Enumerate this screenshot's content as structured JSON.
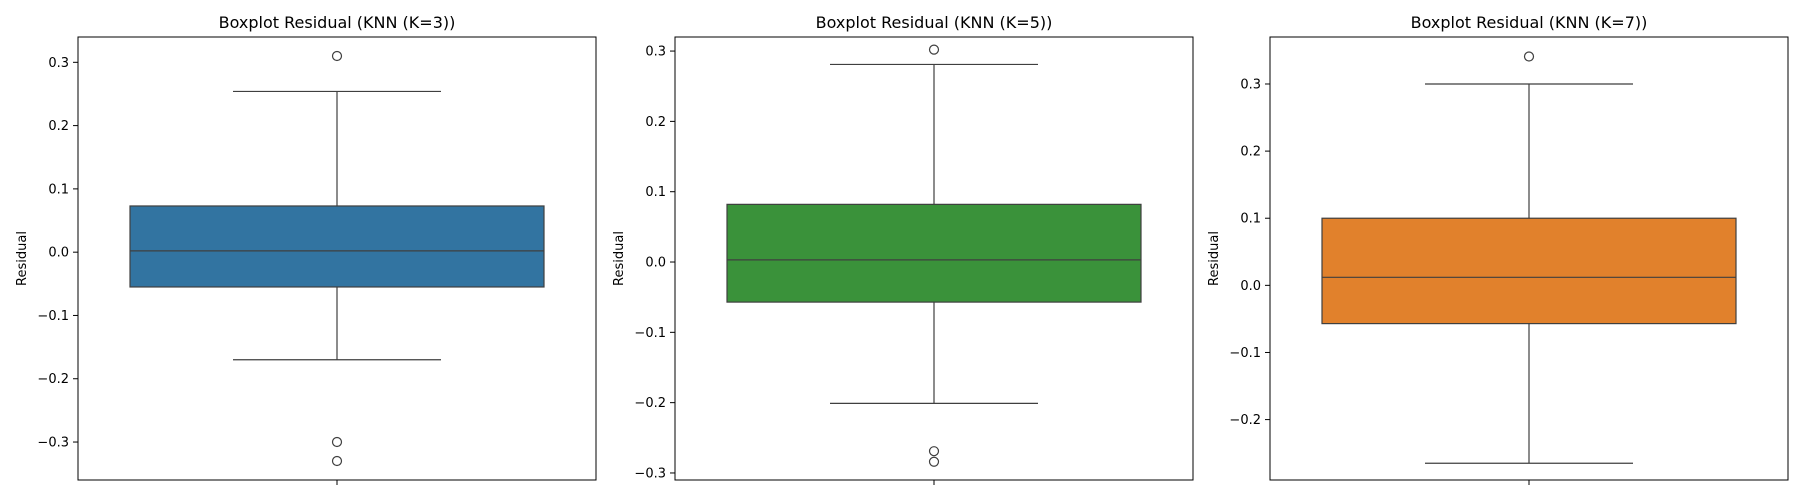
{
  "chart_data": [
    {
      "type": "box",
      "title": "Boxplot Residual (KNN (K=3))",
      "ylabel": "Residual",
      "ylim": [
        -0.36,
        0.34
      ],
      "yticks": [
        -0.3,
        -0.2,
        -0.1,
        0.0,
        0.1,
        0.2,
        0.3
      ],
      "ytick_labels": [
        "−0.3",
        "−0.2",
        "−0.1",
        "0.0",
        "0.1",
        "0.2",
        "0.3"
      ],
      "color": "#3274a1",
      "stats": {
        "whisker_low": -0.17,
        "q1": -0.055,
        "median": 0.002,
        "q3": 0.073,
        "whisker_high": 0.254
      },
      "outliers": [
        0.31,
        -0.3,
        -0.33
      ]
    },
    {
      "type": "box",
      "title": "Boxplot Residual (KNN (K=5))",
      "ylabel": "Residual",
      "ylim": [
        -0.31,
        0.32
      ],
      "yticks": [
        -0.3,
        -0.2,
        -0.1,
        0.0,
        0.1,
        0.2,
        0.3
      ],
      "ytick_labels": [
        "−0.3",
        "−0.2",
        "−0.1",
        "0.0",
        "0.1",
        "0.2",
        "0.3"
      ],
      "color": "#3a923a",
      "stats": {
        "whisker_low": -0.201,
        "q1": -0.057,
        "median": 0.003,
        "q3": 0.082,
        "whisker_high": 0.281
      },
      "outliers": [
        0.302,
        -0.269,
        -0.284
      ]
    },
    {
      "type": "box",
      "title": "Boxplot Residual (KNN (K=7))",
      "ylabel": "Residual",
      "ylim": [
        -0.29,
        0.37
      ],
      "yticks": [
        -0.2,
        -0.1,
        0.0,
        0.1,
        0.2,
        0.3
      ],
      "ytick_labels": [
        "−0.2",
        "−0.1",
        "0.0",
        "0.1",
        "0.2",
        "0.3"
      ],
      "color": "#e1812c",
      "stats": {
        "whisker_low": -0.265,
        "q1": -0.057,
        "median": 0.012,
        "q3": 0.1,
        "whisker_high": 0.3
      },
      "outliers": [
        0.341
      ]
    }
  ]
}
